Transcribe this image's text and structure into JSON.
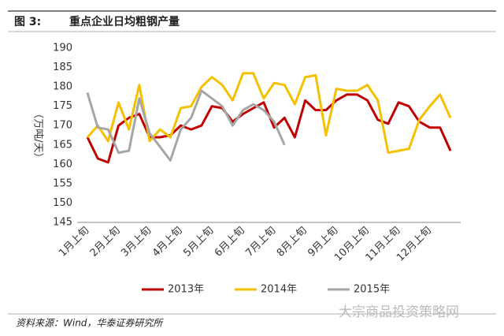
{
  "chart_data": {
    "type": "line",
    "figure_label": "图 3:",
    "title": "重点企业日均粗钢产量",
    "y_label": "（万吨/天）",
    "source": "资料来源：Wind，华泰证券研究所",
    "watermark": "大宗商品投资策略网",
    "categories": [
      "1月上旬",
      null,
      null,
      "2月上旬",
      null,
      null,
      "3月上旬",
      null,
      null,
      "4月上旬",
      null,
      null,
      "5月上旬",
      null,
      null,
      "6月上旬",
      null,
      null,
      "7月上旬",
      null,
      null,
      "8月上旬",
      null,
      null,
      "9月上旬",
      null,
      null,
      "10月上旬",
      null,
      null,
      "11月上旬",
      null,
      null,
      "12月上旬",
      null,
      null
    ],
    "ylim": [
      145,
      190
    ],
    "yticks": [
      145,
      150,
      155,
      160,
      165,
      170,
      175,
      180,
      185,
      190
    ],
    "legend": "bottom",
    "series": [
      {
        "name": "2013年",
        "color": "#c00000",
        "values": [
          167,
          161.5,
          160.5,
          170,
          172,
          173,
          167,
          167,
          167.5,
          170,
          169,
          170,
          175,
          174.5,
          171,
          173,
          174.5,
          176,
          169.5,
          172,
          167,
          176.5,
          174,
          174,
          176.5,
          178,
          178,
          176.5,
          171.5,
          170.5,
          176,
          175,
          171,
          169.5,
          169.5,
          163.5
        ]
      },
      {
        "name": "2014年",
        "color": "#f5c000",
        "values": [
          167,
          170,
          166,
          176,
          169,
          180.5,
          166,
          169,
          167,
          174.5,
          175,
          180,
          182.5,
          180.5,
          176.5,
          183.5,
          183.5,
          177,
          181,
          180.5,
          175.5,
          182.5,
          183,
          167.5,
          179.5,
          179,
          179,
          180.5,
          176.5,
          163,
          163.5,
          164,
          171.5,
          175,
          178,
          172
        ]
      },
      {
        "name": "2015年",
        "color": "#a6a6a6",
        "values": [
          178.5,
          169.5,
          169,
          163,
          163.5,
          177,
          168,
          164.5,
          161,
          169,
          172,
          179,
          177,
          175,
          170,
          174,
          175.5,
          174,
          171,
          165,
          null,
          null,
          null,
          null,
          null,
          null,
          null,
          null,
          null,
          null,
          null,
          null,
          null,
          null,
          null,
          null
        ]
      }
    ]
  }
}
